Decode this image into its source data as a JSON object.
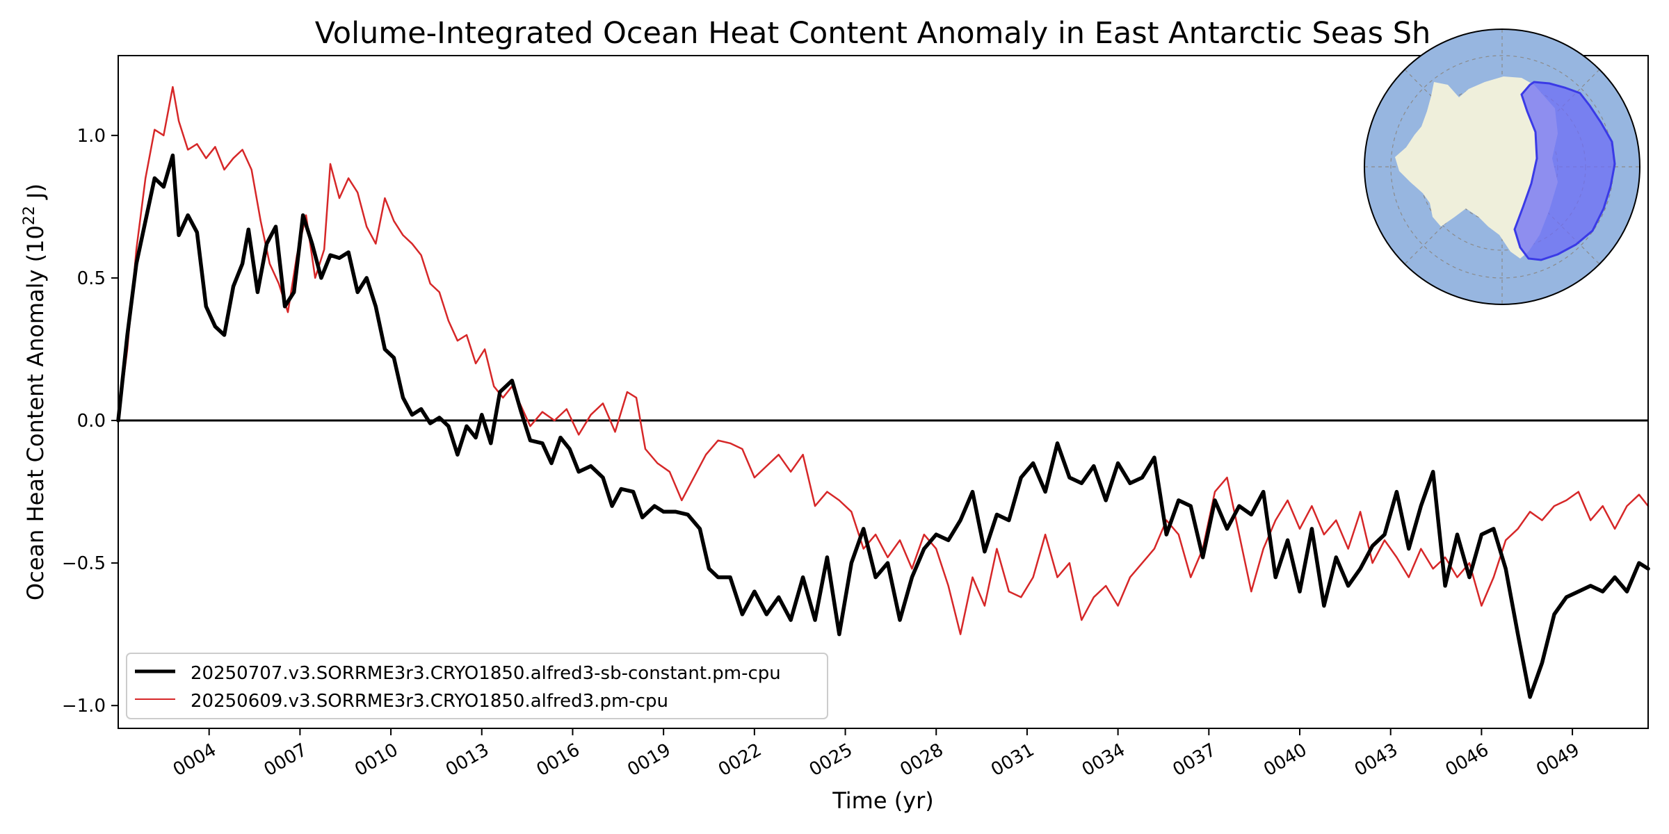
{
  "chart_data": {
    "type": "line",
    "title": "Volume-Integrated Ocean Heat Content Anomaly in East Antarctic Seas Sh",
    "xlabel": "Time (yr)",
    "ylabel": "Ocean Heat Content Anomaly (10^22 J)",
    "ylabel_parts": {
      "main": "Ocean Heat Content Anomaly (10",
      "exp": "22",
      "tail": " J)"
    },
    "xlim": [
      1.0,
      51.5
    ],
    "ylim": [
      -1.08,
      1.28
    ],
    "x_ticks": [
      {
        "value": 4,
        "label": "0004"
      },
      {
        "value": 7,
        "label": "0007"
      },
      {
        "value": 10,
        "label": "0010"
      },
      {
        "value": 13,
        "label": "0013"
      },
      {
        "value": 16,
        "label": "0016"
      },
      {
        "value": 19,
        "label": "0019"
      },
      {
        "value": 22,
        "label": "0022"
      },
      {
        "value": 25,
        "label": "0025"
      },
      {
        "value": 28,
        "label": "0028"
      },
      {
        "value": 31,
        "label": "0031"
      },
      {
        "value": 34,
        "label": "0034"
      },
      {
        "value": 37,
        "label": "0037"
      },
      {
        "value": 40,
        "label": "0040"
      },
      {
        "value": 43,
        "label": "0043"
      },
      {
        "value": 46,
        "label": "0046"
      },
      {
        "value": 49,
        "label": "0049"
      }
    ],
    "y_ticks": [
      {
        "value": 1.0,
        "label": "1.0"
      },
      {
        "value": 0.5,
        "label": "0.5"
      },
      {
        "value": 0.0,
        "label": "0.0"
      },
      {
        "value": -0.5,
        "label": "−0.5"
      },
      {
        "value": -1.0,
        "label": "−1.0"
      }
    ],
    "grid": false,
    "zero_line": 0.0,
    "legend_position": "bottom-left",
    "series": [
      {
        "name": "20250707.v3.SORRME3r3.CRYO1850.alfred3-sb-constant.pm-cpu",
        "color": "#000000",
        "style": "thick",
        "points": [
          [
            1.0,
            0.0
          ],
          [
            1.3,
            0.3
          ],
          [
            1.6,
            0.55
          ],
          [
            1.9,
            0.7
          ],
          [
            2.2,
            0.85
          ],
          [
            2.5,
            0.82
          ],
          [
            2.8,
            0.93
          ],
          [
            3.0,
            0.65
          ],
          [
            3.3,
            0.72
          ],
          [
            3.6,
            0.66
          ],
          [
            3.9,
            0.4
          ],
          [
            4.2,
            0.33
          ],
          [
            4.5,
            0.3
          ],
          [
            4.8,
            0.47
          ],
          [
            5.1,
            0.55
          ],
          [
            5.3,
            0.67
          ],
          [
            5.6,
            0.45
          ],
          [
            5.9,
            0.62
          ],
          [
            6.2,
            0.68
          ],
          [
            6.5,
            0.4
          ],
          [
            6.8,
            0.45
          ],
          [
            7.1,
            0.72
          ],
          [
            7.4,
            0.62
          ],
          [
            7.7,
            0.5
          ],
          [
            8.0,
            0.58
          ],
          [
            8.3,
            0.57
          ],
          [
            8.6,
            0.59
          ],
          [
            8.9,
            0.45
          ],
          [
            9.2,
            0.5
          ],
          [
            9.5,
            0.4
          ],
          [
            9.8,
            0.25
          ],
          [
            10.1,
            0.22
          ],
          [
            10.4,
            0.08
          ],
          [
            10.7,
            0.02
          ],
          [
            11.0,
            0.04
          ],
          [
            11.3,
            -0.01
          ],
          [
            11.6,
            0.01
          ],
          [
            11.9,
            -0.02
          ],
          [
            12.2,
            -0.12
          ],
          [
            12.5,
            -0.02
          ],
          [
            12.8,
            -0.06
          ],
          [
            13.0,
            0.02
          ],
          [
            13.3,
            -0.08
          ],
          [
            13.6,
            0.1
          ],
          [
            14.0,
            0.14
          ],
          [
            14.3,
            0.03
          ],
          [
            14.6,
            -0.07
          ],
          [
            15.0,
            -0.08
          ],
          [
            15.3,
            -0.15
          ],
          [
            15.6,
            -0.06
          ],
          [
            15.9,
            -0.1
          ],
          [
            16.2,
            -0.18
          ],
          [
            16.6,
            -0.16
          ],
          [
            17.0,
            -0.2
          ],
          [
            17.3,
            -0.3
          ],
          [
            17.6,
            -0.24
          ],
          [
            18.0,
            -0.25
          ],
          [
            18.3,
            -0.34
          ],
          [
            18.7,
            -0.3
          ],
          [
            19.0,
            -0.32
          ],
          [
            19.4,
            -0.32
          ],
          [
            19.8,
            -0.33
          ],
          [
            20.2,
            -0.38
          ],
          [
            20.5,
            -0.52
          ],
          [
            20.8,
            -0.55
          ],
          [
            21.2,
            -0.55
          ],
          [
            21.6,
            -0.68
          ],
          [
            22.0,
            -0.6
          ],
          [
            22.4,
            -0.68
          ],
          [
            22.8,
            -0.62
          ],
          [
            23.2,
            -0.7
          ],
          [
            23.6,
            -0.55
          ],
          [
            24.0,
            -0.7
          ],
          [
            24.4,
            -0.48
          ],
          [
            24.8,
            -0.75
          ],
          [
            25.2,
            -0.5
          ],
          [
            25.6,
            -0.38
          ],
          [
            26.0,
            -0.55
          ],
          [
            26.4,
            -0.5
          ],
          [
            26.8,
            -0.7
          ],
          [
            27.2,
            -0.55
          ],
          [
            27.6,
            -0.45
          ],
          [
            28.0,
            -0.4
          ],
          [
            28.4,
            -0.42
          ],
          [
            28.8,
            -0.35
          ],
          [
            29.2,
            -0.25
          ],
          [
            29.6,
            -0.46
          ],
          [
            30.0,
            -0.33
          ],
          [
            30.4,
            -0.35
          ],
          [
            30.8,
            -0.2
          ],
          [
            31.2,
            -0.15
          ],
          [
            31.6,
            -0.25
          ],
          [
            32.0,
            -0.08
          ],
          [
            32.4,
            -0.2
          ],
          [
            32.8,
            -0.22
          ],
          [
            33.2,
            -0.16
          ],
          [
            33.6,
            -0.28
          ],
          [
            34.0,
            -0.15
          ],
          [
            34.4,
            -0.22
          ],
          [
            34.8,
            -0.2
          ],
          [
            35.2,
            -0.13
          ],
          [
            35.6,
            -0.4
          ],
          [
            36.0,
            -0.28
          ],
          [
            36.4,
            -0.3
          ],
          [
            36.8,
            -0.48
          ],
          [
            37.2,
            -0.28
          ],
          [
            37.6,
            -0.38
          ],
          [
            38.0,
            -0.3
          ],
          [
            38.4,
            -0.33
          ],
          [
            38.8,
            -0.25
          ],
          [
            39.2,
            -0.55
          ],
          [
            39.6,
            -0.42
          ],
          [
            40.0,
            -0.6
          ],
          [
            40.4,
            -0.38
          ],
          [
            40.8,
            -0.65
          ],
          [
            41.2,
            -0.48
          ],
          [
            41.6,
            -0.58
          ],
          [
            42.0,
            -0.52
          ],
          [
            42.4,
            -0.44
          ],
          [
            42.8,
            -0.4
          ],
          [
            43.2,
            -0.25
          ],
          [
            43.6,
            -0.45
          ],
          [
            44.0,
            -0.3
          ],
          [
            44.4,
            -0.18
          ],
          [
            44.8,
            -0.58
          ],
          [
            45.2,
            -0.4
          ],
          [
            45.6,
            -0.55
          ],
          [
            46.0,
            -0.4
          ],
          [
            46.4,
            -0.38
          ],
          [
            46.8,
            -0.52
          ],
          [
            47.2,
            -0.75
          ],
          [
            47.6,
            -0.97
          ],
          [
            48.0,
            -0.85
          ],
          [
            48.4,
            -0.68
          ],
          [
            48.8,
            -0.62
          ],
          [
            49.2,
            -0.6
          ],
          [
            49.6,
            -0.58
          ],
          [
            50.0,
            -0.6
          ],
          [
            50.4,
            -0.55
          ],
          [
            50.8,
            -0.6
          ],
          [
            51.2,
            -0.5
          ],
          [
            51.5,
            -0.52
          ]
        ]
      },
      {
        "name": "20250609.v3.SORRME3r3.CRYO1850.alfred3.pm-cpu",
        "color": "#d62728",
        "style": "thin",
        "points": [
          [
            1.0,
            0.0
          ],
          [
            1.3,
            0.25
          ],
          [
            1.6,
            0.6
          ],
          [
            1.9,
            0.85
          ],
          [
            2.2,
            1.02
          ],
          [
            2.5,
            1.0
          ],
          [
            2.8,
            1.17
          ],
          [
            3.0,
            1.05
          ],
          [
            3.3,
            0.95
          ],
          [
            3.6,
            0.97
          ],
          [
            3.9,
            0.92
          ],
          [
            4.2,
            0.96
          ],
          [
            4.5,
            0.88
          ],
          [
            4.8,
            0.92
          ],
          [
            5.1,
            0.95
          ],
          [
            5.4,
            0.88
          ],
          [
            5.7,
            0.7
          ],
          [
            6.0,
            0.55
          ],
          [
            6.3,
            0.48
          ],
          [
            6.6,
            0.38
          ],
          [
            6.9,
            0.58
          ],
          [
            7.2,
            0.72
          ],
          [
            7.5,
            0.5
          ],
          [
            7.8,
            0.6
          ],
          [
            8.0,
            0.9
          ],
          [
            8.3,
            0.78
          ],
          [
            8.6,
            0.85
          ],
          [
            8.9,
            0.8
          ],
          [
            9.2,
            0.68
          ],
          [
            9.5,
            0.62
          ],
          [
            9.8,
            0.78
          ],
          [
            10.1,
            0.7
          ],
          [
            10.4,
            0.65
          ],
          [
            10.7,
            0.62
          ],
          [
            11.0,
            0.58
          ],
          [
            11.3,
            0.48
          ],
          [
            11.6,
            0.45
          ],
          [
            11.9,
            0.35
          ],
          [
            12.2,
            0.28
          ],
          [
            12.5,
            0.3
          ],
          [
            12.8,
            0.2
          ],
          [
            13.1,
            0.25
          ],
          [
            13.4,
            0.12
          ],
          [
            13.7,
            0.08
          ],
          [
            14.0,
            0.12
          ],
          [
            14.3,
            0.05
          ],
          [
            14.6,
            -0.02
          ],
          [
            15.0,
            0.03
          ],
          [
            15.4,
            0.0
          ],
          [
            15.8,
            0.04
          ],
          [
            16.2,
            -0.05
          ],
          [
            16.6,
            0.02
          ],
          [
            17.0,
            0.06
          ],
          [
            17.4,
            -0.04
          ],
          [
            17.8,
            0.1
          ],
          [
            18.1,
            0.08
          ],
          [
            18.4,
            -0.1
          ],
          [
            18.8,
            -0.15
          ],
          [
            19.2,
            -0.18
          ],
          [
            19.6,
            -0.28
          ],
          [
            20.0,
            -0.2
          ],
          [
            20.4,
            -0.12
          ],
          [
            20.8,
            -0.07
          ],
          [
            21.2,
            -0.08
          ],
          [
            21.6,
            -0.1
          ],
          [
            22.0,
            -0.2
          ],
          [
            22.4,
            -0.16
          ],
          [
            22.8,
            -0.12
          ],
          [
            23.2,
            -0.18
          ],
          [
            23.6,
            -0.12
          ],
          [
            24.0,
            -0.3
          ],
          [
            24.4,
            -0.25
          ],
          [
            24.8,
            -0.28
          ],
          [
            25.2,
            -0.32
          ],
          [
            25.6,
            -0.45
          ],
          [
            26.0,
            -0.4
          ],
          [
            26.4,
            -0.48
          ],
          [
            26.8,
            -0.42
          ],
          [
            27.2,
            -0.52
          ],
          [
            27.6,
            -0.4
          ],
          [
            28.0,
            -0.45
          ],
          [
            28.4,
            -0.58
          ],
          [
            28.8,
            -0.75
          ],
          [
            29.2,
            -0.55
          ],
          [
            29.6,
            -0.65
          ],
          [
            30.0,
            -0.45
          ],
          [
            30.4,
            -0.6
          ],
          [
            30.8,
            -0.62
          ],
          [
            31.2,
            -0.55
          ],
          [
            31.6,
            -0.4
          ],
          [
            32.0,
            -0.55
          ],
          [
            32.4,
            -0.5
          ],
          [
            32.8,
            -0.7
          ],
          [
            33.2,
            -0.62
          ],
          [
            33.6,
            -0.58
          ],
          [
            34.0,
            -0.65
          ],
          [
            34.4,
            -0.55
          ],
          [
            34.8,
            -0.5
          ],
          [
            35.2,
            -0.45
          ],
          [
            35.6,
            -0.35
          ],
          [
            36.0,
            -0.4
          ],
          [
            36.4,
            -0.55
          ],
          [
            36.8,
            -0.45
          ],
          [
            37.2,
            -0.25
          ],
          [
            37.6,
            -0.2
          ],
          [
            38.0,
            -0.4
          ],
          [
            38.4,
            -0.6
          ],
          [
            38.8,
            -0.45
          ],
          [
            39.2,
            -0.35
          ],
          [
            39.6,
            -0.28
          ],
          [
            40.0,
            -0.38
          ],
          [
            40.4,
            -0.3
          ],
          [
            40.8,
            -0.4
          ],
          [
            41.2,
            -0.35
          ],
          [
            41.6,
            -0.45
          ],
          [
            42.0,
            -0.32
          ],
          [
            42.4,
            -0.5
          ],
          [
            42.8,
            -0.42
          ],
          [
            43.2,
            -0.48
          ],
          [
            43.6,
            -0.55
          ],
          [
            44.0,
            -0.45
          ],
          [
            44.4,
            -0.52
          ],
          [
            44.8,
            -0.48
          ],
          [
            45.2,
            -0.55
          ],
          [
            45.6,
            -0.5
          ],
          [
            46.0,
            -0.65
          ],
          [
            46.4,
            -0.55
          ],
          [
            46.8,
            -0.42
          ],
          [
            47.2,
            -0.38
          ],
          [
            47.6,
            -0.32
          ],
          [
            48.0,
            -0.35
          ],
          [
            48.4,
            -0.3
          ],
          [
            48.8,
            -0.28
          ],
          [
            49.2,
            -0.25
          ],
          [
            49.6,
            -0.35
          ],
          [
            50.0,
            -0.3
          ],
          [
            50.4,
            -0.38
          ],
          [
            50.8,
            -0.3
          ],
          [
            51.2,
            -0.26
          ],
          [
            51.5,
            -0.3
          ]
        ]
      }
    ]
  },
  "inset_map": {
    "ocean_color": "#97b6e0",
    "land_color": "#efefdb",
    "region_fill": "#6d6df5",
    "region_edge": "#3a3ae6"
  }
}
